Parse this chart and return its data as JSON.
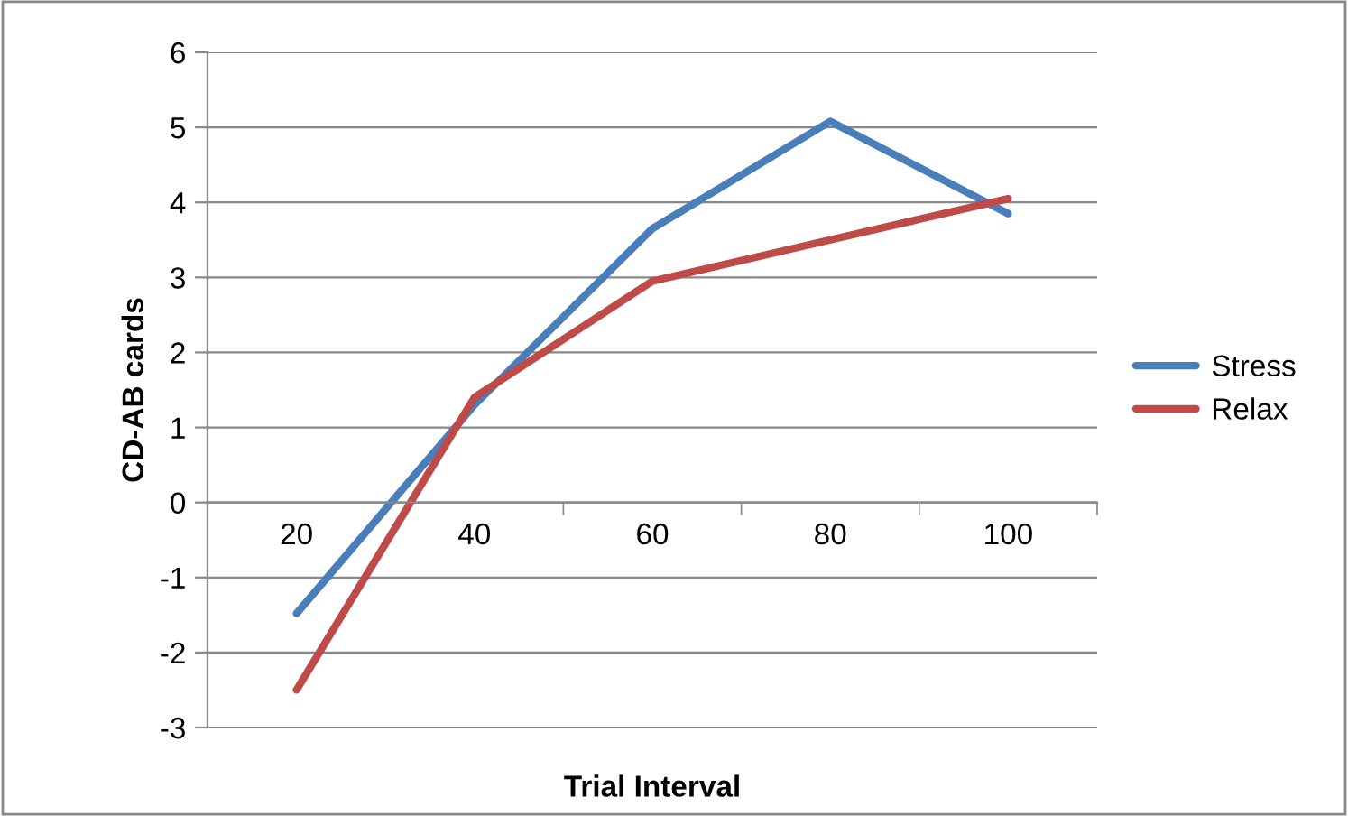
{
  "chart_data": {
    "type": "line",
    "xlabel": "Trial Interval",
    "ylabel": "CD-AB cards",
    "categories": [
      "20",
      "40",
      "60",
      "80",
      "100"
    ],
    "series": [
      {
        "name": "Stress",
        "color": "#4a7ebb",
        "values": [
          -1.48,
          1.3,
          3.65,
          5.08,
          3.85
        ]
      },
      {
        "name": "Relax",
        "color": "#be4b48",
        "values": [
          -2.5,
          1.4,
          2.95,
          3.5,
          4.05
        ]
      }
    ],
    "ylim": [
      -3,
      6
    ],
    "yticks": [
      -3,
      -2,
      -1,
      0,
      1,
      2,
      3,
      4,
      5,
      6
    ],
    "grid": "y",
    "legend": "right",
    "marker": "none",
    "line_style": "solid"
  }
}
